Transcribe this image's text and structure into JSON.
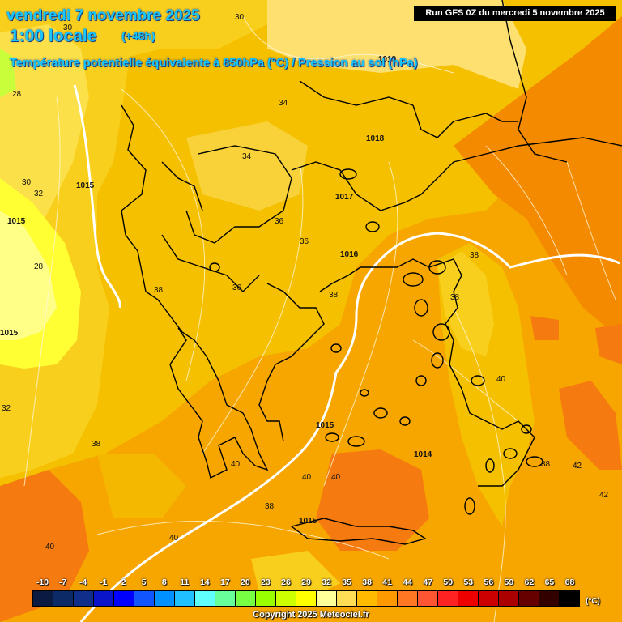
{
  "header": {
    "date": "vendredi 7 novembre 2025",
    "local_time": "1:00 locale",
    "lead": "(+48h)",
    "parameter": "Température potentielle équivalente à 850hPa (°C) / Pression au sol (hPa)",
    "run": "Run GFS 0Z du mercredi 5 novembre 2025"
  },
  "legend": {
    "values": [
      "-10",
      "-7",
      "-4",
      "-1",
      "2",
      "5",
      "8",
      "11",
      "14",
      "17",
      "20",
      "23",
      "26",
      "29",
      "32",
      "35",
      "38",
      "41",
      "44",
      "47",
      "50",
      "53",
      "56",
      "59",
      "62",
      "65",
      "68"
    ],
    "colors": [
      "#0a1a40",
      "#0b2a66",
      "#102f8a",
      "#0a14c8",
      "#0000ff",
      "#1155ff",
      "#0090ff",
      "#20c0ff",
      "#60ffff",
      "#66ff99",
      "#77ff44",
      "#99ff00",
      "#ccff00",
      "#ffff00",
      "#ffff99",
      "#ffdd55",
      "#ffbb00",
      "#ff9900",
      "#ff7722",
      "#ff5533",
      "#ff2222",
      "#ee0000",
      "#cc0000",
      "#aa0000",
      "#660000",
      "#330000",
      "#000000"
    ],
    "unit": "(°C)"
  },
  "copyright": "Copyright 2025 Meteociel.fr",
  "map_labels": {
    "theta_e": [
      "30",
      "30",
      "28",
      "32",
      "28",
      "34",
      "34",
      "36",
      "36",
      "36",
      "38",
      "38",
      "38",
      "40",
      "40",
      "40",
      "40",
      "40",
      "38",
      "38",
      "42",
      "42",
      "40",
      "38",
      "32",
      "30"
    ],
    "pressure": [
      "1019",
      "1018",
      "1015",
      "1015",
      "1017",
      "1016",
      "1015",
      "1014",
      "1015",
      "1015"
    ]
  }
}
